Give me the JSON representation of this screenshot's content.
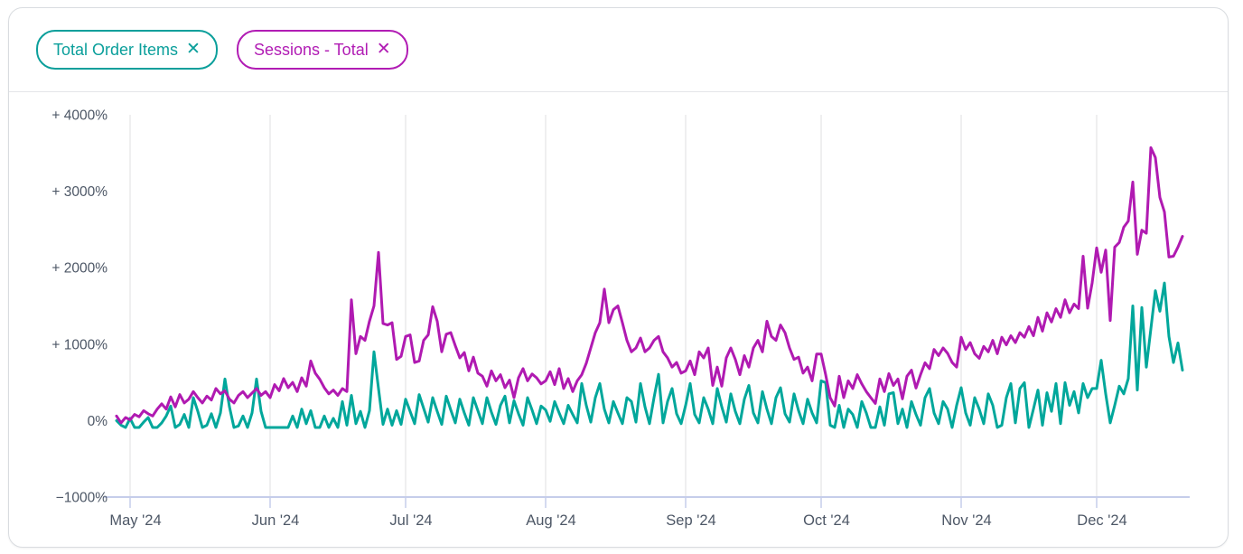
{
  "header": {
    "filters": [
      {
        "label": "Total Order Items",
        "color": "#0b9f9b"
      },
      {
        "label": "Sessions - Total",
        "color": "#b11cb4"
      }
    ],
    "remove_icon": "✕"
  },
  "chart_data": {
    "type": "line",
    "title": "",
    "xlabel": "",
    "ylabel": "",
    "ylim": [
      -1000,
      4000
    ],
    "total_days": 238,
    "grid": "vertical-monthly",
    "legend_position": "header-chips",
    "y_ticks": [
      {
        "value": 4000,
        "label": "+ 4000%"
      },
      {
        "value": 3000,
        "label": "+ 3000%"
      },
      {
        "value": 2000,
        "label": "+ 2000%"
      },
      {
        "value": 1000,
        "label": "+ 1000%"
      },
      {
        "value": 0,
        "label": "0%"
      },
      {
        "value": -1000,
        "label": "−1000%"
      }
    ],
    "months": [
      {
        "label": "May '24",
        "day": 3
      },
      {
        "label": "Jun '24",
        "day": 34
      },
      {
        "label": "Jul '24",
        "day": 64
      },
      {
        "label": "Aug '24",
        "day": 95
      },
      {
        "label": "Sep '24",
        "day": 126
      },
      {
        "label": "Oct '24",
        "day": 156
      },
      {
        "label": "Nov '24",
        "day": 187
      },
      {
        "label": "Dec '24",
        "day": 217
      }
    ],
    "series": [
      {
        "name": "Total Order Items",
        "color": "#00a79b",
        "values": [
          0,
          -60,
          -90,
          30,
          -90,
          -90,
          -20,
          40,
          -90,
          -90,
          -30,
          60,
          190,
          -90,
          -50,
          80,
          -90,
          300,
          120,
          -90,
          -60,
          90,
          -90,
          100,
          545,
          180,
          -90,
          -70,
          60,
          -90,
          100,
          545,
          120,
          -90,
          -90,
          -90,
          -90,
          -90,
          -90,
          60,
          -90,
          150,
          -40,
          130,
          -90,
          -90,
          60,
          -90,
          30,
          -90,
          250,
          -60,
          330,
          -40,
          120,
          -90,
          130,
          900,
          420,
          -50,
          150,
          -60,
          130,
          -50,
          280,
          120,
          -40,
          340,
          160,
          -20,
          300,
          120,
          -50,
          320,
          140,
          -30,
          280,
          100,
          -60,
          300,
          130,
          -40,
          300,
          110,
          -50,
          200,
          320,
          -30,
          260,
          90,
          -60,
          300,
          140,
          -40,
          190,
          140,
          -10,
          250,
          100,
          -40,
          200,
          80,
          -30,
          485,
          200,
          -20,
          300,
          485,
          150,
          -30,
          250,
          100,
          -40,
          300,
          250,
          -20,
          485,
          180,
          -40,
          300,
          605,
          -30,
          250,
          420,
          90,
          -40,
          200,
          485,
          80,
          -30,
          300,
          150,
          -40,
          420,
          180,
          -20,
          350,
          120,
          -40,
          280,
          460,
          100,
          -30,
          380,
          150,
          -40,
          300,
          430,
          90,
          -20,
          350,
          130,
          -40,
          280,
          100,
          -30,
          520,
          497,
          -60,
          -90,
          200,
          -90,
          150,
          80,
          -90,
          250,
          100,
          -90,
          -90,
          180,
          -60,
          350,
          365,
          -40,
          150,
          -90,
          250,
          80,
          -60,
          300,
          420,
          100,
          -40,
          250,
          150,
          -90,
          200,
          430,
          100,
          -60,
          300,
          150,
          -40,
          350,
          200,
          -90,
          -60,
          300,
          485,
          -30,
          420,
          497,
          -90,
          150,
          400,
          -60,
          365,
          120,
          485,
          -40,
          497,
          200,
          380,
          100,
          485,
          300,
          420,
          420,
          790,
          350,
          -30,
          200,
          450,
          350,
          550,
          1500,
          400,
          1480,
          700,
          1200,
          1700,
          1430,
          1800,
          1100,
          760,
          1015,
          660
        ]
      },
      {
        "name": "Sessions - Total",
        "color": "#b01ab1",
        "values": [
          60,
          -30,
          40,
          10,
          80,
          50,
          130,
          90,
          60,
          150,
          220,
          150,
          310,
          180,
          340,
          230,
          280,
          380,
          300,
          230,
          320,
          270,
          420,
          350,
          390,
          280,
          230,
          330,
          380,
          300,
          360,
          420,
          330,
          380,
          300,
          470,
          390,
          550,
          430,
          500,
          380,
          560,
          450,
          780,
          620,
          540,
          430,
          350,
          400,
          330,
          420,
          380,
          1580,
          875,
          1100,
          1050,
          1300,
          1500,
          2200,
          1270,
          1250,
          1280,
          800,
          840,
          1100,
          1120,
          760,
          780,
          1050,
          1120,
          1490,
          1300,
          900,
          1130,
          1150,
          980,
          820,
          890,
          650,
          830,
          620,
          580,
          450,
          650,
          520,
          600,
          430,
          530,
          300,
          560,
          680,
          520,
          610,
          560,
          480,
          520,
          640,
          470,
          680,
          420,
          550,
          380,
          520,
          600,
          750,
          950,
          1150,
          1280,
          1720,
          1280,
          1450,
          1500,
          1280,
          1050,
          900,
          950,
          1080,
          900,
          950,
          1050,
          1100,
          900,
          820,
          700,
          760,
          620,
          650,
          780,
          600,
          900,
          820,
          950,
          460,
          700,
          450,
          820,
          950,
          800,
          600,
          850,
          700,
          950,
          1050,
          900,
          1300,
          1100,
          1050,
          1250,
          1150,
          950,
          800,
          830,
          620,
          700,
          520,
          870,
          870,
          600,
          300,
          190,
          580,
          300,
          520,
          420,
          600,
          480,
          380,
          300,
          225,
          545,
          380,
          615,
          460,
          545,
          285,
          580,
          660,
          425,
          600,
          757,
          680,
          930,
          850,
          950,
          880,
          760,
          700,
          1090,
          930,
          1020,
          875,
          815,
          970,
          900,
          1050,
          875,
          1090,
          990,
          1110,
          1020,
          1150,
          1090,
          1230,
          1110,
          1350,
          1170,
          1410,
          1290,
          1465,
          1350,
          1580,
          1410,
          1525,
          1465,
          2150,
          1470,
          1800,
          2260,
          1940,
          2230,
          1310,
          2270,
          2330,
          2530,
          2610,
          3120,
          2175,
          2490,
          2450,
          3570,
          3440,
          2920,
          2730,
          2140,
          2150,
          2270,
          2410
        ]
      }
    ],
    "colors": {
      "gridline": "#eaeaec",
      "axis_line": "#c5cdea",
      "tick_label": "#4d5766"
    }
  }
}
